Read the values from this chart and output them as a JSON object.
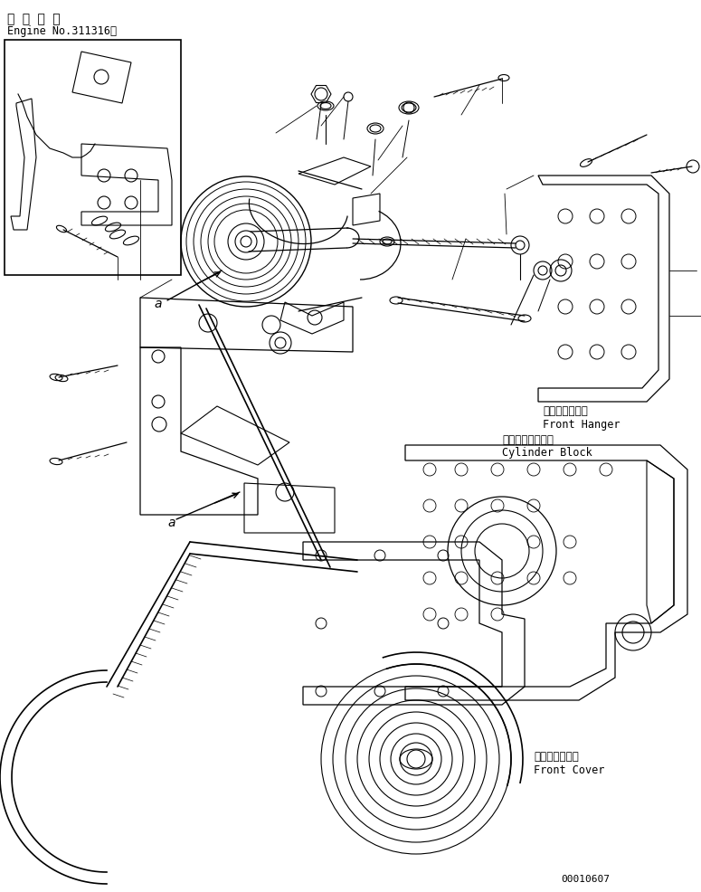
{
  "title_line1": "適 用 号 機",
  "title_line2": "Engine No.311316～",
  "label_front_hanger_jp": "フロントハンガ",
  "label_front_hanger_en": "Front Hanger",
  "label_cylinder_block_jp": "シリンダブロック",
  "label_cylinder_block_en": "Cylinder Block",
  "label_front_cover_jp": "フロントカバー",
  "label_front_cover_en": "Front Cover",
  "label_a": "a",
  "part_number": "00010607",
  "bg_color": "#ffffff",
  "line_color": "#000000",
  "fig_width": 7.75,
  "fig_height": 9.87,
  "dpi": 100
}
